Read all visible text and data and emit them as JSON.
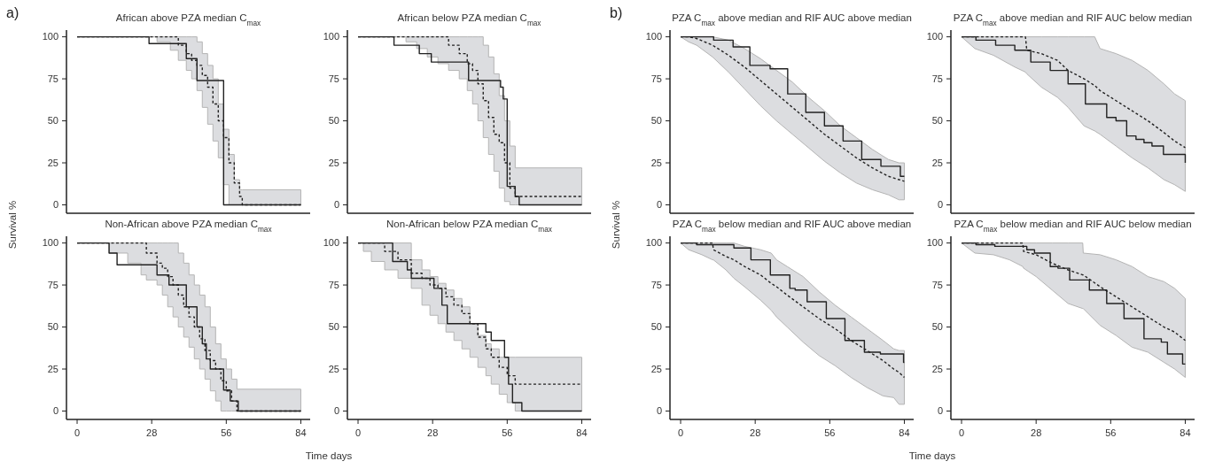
{
  "chart_data": [
    {
      "type": "step",
      "title": "African above PZA median C$_{max}$",
      "ylabel": "Survival %",
      "annotations": [
        "a)"
      ],
      "xlim": [
        -4,
        87.5
      ],
      "ylim": [
        -5,
        104
      ],
      "yticks": [
        0,
        25,
        50,
        75,
        100
      ],
      "tick_labels": "y",
      "series": [
        {
          "color": "#222222",
          "line_style": "solid",
          "x": [
            0,
            27,
            41,
            45,
            55,
            84
          ],
          "values": [
            100,
            96,
            87,
            74,
            0,
            0
          ]
        },
        {
          "color": "#222222",
          "line_style": "dashed",
          "x": [
            0,
            30,
            35,
            38,
            41,
            43,
            45,
            47,
            49,
            51,
            53,
            55,
            57,
            59,
            61,
            62,
            84
          ],
          "values": [
            100,
            100,
            100,
            95,
            90,
            86,
            83,
            77,
            70,
            60,
            50,
            40,
            25,
            13,
            5,
            0,
            0
          ],
          "lower": [
            100,
            97,
            92,
            86,
            80,
            75,
            68,
            58,
            48,
            38,
            28,
            12,
            0,
            0,
            0,
            0,
            0
          ],
          "upper": [
            100,
            100,
            100,
            100,
            100,
            100,
            97,
            90,
            83,
            75,
            60,
            45,
            30,
            15,
            9,
            9,
            9
          ]
        }
      ]
    },
    {
      "type": "step",
      "title": "African below PZA median C$_{max}$",
      "xlim": [
        -4,
        87.5
      ],
      "ylim": [
        -5,
        104
      ],
      "yticks": [
        0,
        25,
        50,
        75,
        100
      ],
      "tick_labels": "y",
      "series": [
        {
          "color": "#222222",
          "line_style": "solid",
          "x": [
            0,
            13.5,
            23,
            27.5,
            41.5,
            53.5,
            54.5,
            56,
            59,
            60.5,
            84
          ],
          "values": [
            100,
            95,
            90,
            85,
            74,
            70,
            63,
            11,
            5,
            0,
            0
          ]
        },
        {
          "color": "#222222",
          "line_style": "dashed",
          "x": [
            0,
            18,
            22,
            26,
            30,
            34,
            38,
            41,
            43,
            45,
            47,
            49,
            51,
            53,
            55,
            57,
            59,
            84
          ],
          "values": [
            100,
            100,
            100,
            100,
            100,
            95,
            90,
            84,
            80,
            72,
            62,
            52,
            42,
            37,
            25,
            10,
            5,
            5
          ],
          "lower": [
            100,
            97,
            93,
            88,
            84,
            80,
            75,
            68,
            60,
            50,
            40,
            30,
            20,
            10,
            2,
            0,
            0,
            0
          ],
          "upper": [
            100,
            100,
            100,
            100,
            100,
            100,
            100,
            100,
            100,
            100,
            95,
            88,
            78,
            65,
            50,
            35,
            22,
            21
          ]
        }
      ]
    },
    {
      "type": "step",
      "title": "Non-African above PZA median C$_{max}$",
      "xlabel": "Time days",
      "xlim": [
        -4,
        87.5
      ],
      "ylim": [
        -5,
        104
      ],
      "xticks": [
        0,
        28,
        56,
        84
      ],
      "yticks": [
        0,
        25,
        50,
        75,
        100
      ],
      "series": [
        {
          "color": "#222222",
          "line_style": "solid",
          "x": [
            0,
            12,
            15,
            30,
            34.5,
            41,
            45,
            47,
            48.5,
            50,
            55,
            57.5,
            60.5,
            84
          ],
          "values": [
            100,
            94,
            87,
            81,
            75,
            62,
            50,
            40,
            31,
            25,
            12.5,
            6,
            0,
            0
          ]
        },
        {
          "color": "#222222",
          "line_style": "dashed",
          "x": [
            0,
            12,
            19,
            24,
            26,
            30,
            32,
            34,
            36,
            38,
            40,
            42,
            44,
            46,
            48,
            50,
            52,
            54,
            56,
            58,
            60,
            84
          ],
          "values": [
            100,
            100,
            100,
            100,
            94,
            88,
            85,
            80,
            75,
            69,
            62,
            56,
            50,
            43,
            36,
            30,
            25,
            18,
            12,
            6,
            0,
            0
          ],
          "lower": [
            100,
            94,
            88,
            81,
            78,
            75,
            69,
            62,
            56,
            50,
            44,
            38,
            31,
            25,
            19,
            12,
            6,
            0,
            0,
            0,
            0,
            0
          ],
          "upper": [
            100,
            100,
            100,
            100,
            100,
            100,
            100,
            100,
            100,
            94,
            88,
            81,
            75,
            69,
            62,
            50,
            40,
            31,
            25,
            19,
            13,
            13
          ]
        }
      ]
    },
    {
      "type": "step",
      "title": "Non-African below PZA median C$_{max}$",
      "xlim": [
        -4,
        87.5
      ],
      "ylim": [
        -5,
        104
      ],
      "xticks": [
        0,
        28,
        56,
        84
      ],
      "yticks": [
        0,
        25,
        50,
        75,
        100
      ],
      "series": [
        {
          "color": "#222222",
          "line_style": "solid",
          "x": [
            0,
            13,
            18.5,
            20,
            28.5,
            31.5,
            33.5,
            48,
            50,
            55,
            56.5,
            58,
            61.5,
            84
          ],
          "values": [
            100,
            89,
            84,
            79,
            73,
            63,
            52,
            47,
            42,
            32,
            16,
            5,
            0,
            0
          ]
        },
        {
          "color": "#222222",
          "line_style": "dashed",
          "x": [
            0,
            2,
            5,
            10,
            15,
            20,
            24,
            27,
            30,
            33,
            36,
            39,
            42,
            45,
            48,
            50,
            53,
            56,
            59,
            84
          ],
          "values": [
            100,
            100,
            100,
            95,
            90,
            82,
            79,
            75,
            73,
            68,
            63,
            58,
            52,
            44,
            37,
            32,
            26,
            21,
            16,
            16
          ],
          "lower": [
            100,
            95,
            89,
            84,
            79,
            73,
            63,
            57,
            52,
            47,
            42,
            37,
            32,
            26,
            21,
            16,
            10,
            5,
            0,
            0
          ],
          "upper": [
            100,
            100,
            100,
            100,
            100,
            90,
            84,
            80,
            76,
            72,
            67,
            62,
            52,
            45,
            40,
            37,
            32,
            32,
            32,
            32
          ]
        }
      ]
    },
    {
      "type": "line",
      "title": "PZA C$_{max}$ above median and RIF AUC above median",
      "ylabel": "Survival %",
      "annotations": [
        "b)"
      ],
      "xlim": [
        -4,
        87.5
      ],
      "ylim": [
        -5,
        104
      ],
      "yticks": [
        0,
        25,
        50,
        75,
        100
      ],
      "tick_labels": "y",
      "series": [
        {
          "type": "step",
          "color": "#222222",
          "line_style": "solid",
          "x": [
            0,
            12.4,
            19.7,
            26,
            33.6,
            40.2,
            47,
            54,
            61,
            68,
            75.2,
            82.5,
            84
          ],
          "values": [
            100,
            98,
            94,
            83,
            81,
            66,
            55,
            47,
            38,
            27,
            23,
            17,
            17
          ]
        },
        {
          "color": "#222222",
          "line_style": "dashed",
          "x": [
            0,
            3,
            6,
            12,
            18,
            24,
            30,
            36,
            42,
            48,
            54,
            60,
            66,
            72,
            78,
            82,
            84
          ],
          "values": [
            100,
            100,
            99,
            95,
            89,
            82,
            74,
            66,
            58,
            50,
            42,
            35,
            28,
            22,
            17,
            15,
            14
          ],
          "lower": [
            100,
            97,
            95,
            88,
            79,
            69,
            59,
            50,
            42,
            34,
            26,
            19,
            13,
            9,
            6,
            3,
            3
          ],
          "upper": [
            100,
            100,
            100,
            100,
            98,
            93,
            87,
            80,
            73,
            64,
            56,
            47,
            40,
            33,
            27,
            25,
            25
          ]
        }
      ]
    },
    {
      "type": "line",
      "title": "PZA C$_{max}$ above median and RIF AUC below median",
      "xlim": [
        -4,
        87.5
      ],
      "ylim": [
        -5,
        104
      ],
      "yticks": [
        0,
        25,
        50,
        75,
        100
      ],
      "tick_labels": "y",
      "series": [
        {
          "type": "step",
          "color": "#222222",
          "line_style": "solid",
          "x": [
            0,
            5.4,
            12.8,
            20,
            26,
            33.3,
            40,
            46.5,
            54.5,
            58,
            62,
            65.5,
            68.5,
            71.5,
            75.8,
            84
          ],
          "values": [
            100,
            98,
            95,
            92,
            85,
            80,
            72,
            60,
            52,
            50,
            41,
            39,
            37,
            35,
            30,
            25
          ]
        },
        {
          "color": "#222222",
          "line_style": "dashed",
          "x": [
            0,
            5,
            12,
            20,
            24,
            24.5,
            30,
            36,
            40,
            46,
            50,
            52,
            58,
            64,
            70,
            76,
            80,
            84
          ],
          "values": [
            100,
            100,
            100,
            100,
            100,
            92,
            90,
            86,
            80,
            75,
            71,
            68,
            62,
            56,
            50,
            43,
            38,
            34
          ],
          "lower": [
            100,
            93,
            89,
            82,
            79,
            78,
            70,
            64,
            58,
            47,
            44,
            42,
            35,
            28,
            22,
            15,
            12,
            8
          ],
          "upper": [
            100,
            100,
            100,
            100,
            100,
            100,
            100,
            100,
            100,
            100,
            100,
            93,
            90,
            86,
            80,
            72,
            66,
            62
          ]
        }
      ]
    },
    {
      "type": "line",
      "title": "PZA C$_{max}$ below median and RIF AUC above median",
      "xlabel": "Time days",
      "xlim": [
        -4,
        87.5
      ],
      "ylim": [
        -5,
        104
      ],
      "xticks": [
        0,
        28,
        56,
        84
      ],
      "yticks": [
        0,
        25,
        50,
        75,
        100
      ],
      "series": [
        {
          "type": "step",
          "color": "#222222",
          "line_style": "solid",
          "x": [
            0,
            6,
            20,
            26.4,
            33.7,
            41,
            43,
            47.5,
            54.7,
            61.7,
            69,
            75,
            83.7,
            84
          ],
          "values": [
            100,
            99,
            97,
            90,
            81,
            73,
            72,
            65,
            55,
            42,
            35,
            34,
            29,
            29
          ]
        },
        {
          "color": "#222222",
          "line_style": "dashed",
          "x": [
            0,
            3,
            8,
            12,
            12.3,
            17,
            20,
            24,
            30,
            34,
            36,
            40,
            46,
            52,
            58,
            64,
            70,
            76,
            80,
            82,
            84
          ],
          "values": [
            100,
            100,
            100,
            100,
            96,
            92,
            90,
            86,
            81,
            76,
            74,
            69,
            62,
            55,
            49,
            42,
            36,
            30,
            25,
            23,
            20
          ],
          "lower": [
            100,
            96,
            93,
            90,
            90,
            84,
            79,
            74,
            66,
            60,
            56,
            50,
            41,
            33,
            27,
            20,
            14,
            9,
            8,
            4,
            4
          ],
          "upper": [
            100,
            100,
            100,
            100,
            100,
            100,
            100,
            98,
            96,
            94,
            90,
            86,
            80,
            71,
            63,
            56,
            49,
            42,
            37,
            36,
            36
          ]
        }
      ]
    },
    {
      "type": "line",
      "title": "PZA C$_{max}$ below median and RIF AUC below median",
      "xlim": [
        -4,
        87.5
      ],
      "ylim": [
        -5,
        104
      ],
      "xticks": [
        0,
        28,
        56,
        84
      ],
      "yticks": [
        0,
        25,
        50,
        75,
        100
      ],
      "series": [
        {
          "type": "step",
          "color": "#222222",
          "line_style": "solid",
          "x": [
            0,
            5.4,
            12.5,
            24.5,
            27.4,
            33.3,
            36.2,
            40.6,
            48,
            54.5,
            61,
            68.5,
            75,
            77.3,
            83,
            84
          ],
          "values": [
            100,
            99,
            98,
            96,
            94,
            86,
            85,
            78,
            72,
            64,
            55,
            43,
            41,
            34,
            28,
            28
          ]
        },
        {
          "color": "#222222",
          "line_style": "dashed",
          "x": [
            0,
            5,
            12,
            18,
            23,
            23.3,
            28,
            34,
            40,
            45.5,
            45.7,
            52,
            58,
            64,
            70,
            76,
            80,
            84
          ],
          "values": [
            100,
            100,
            100,
            100,
            100,
            95,
            93,
            88,
            84,
            81,
            81,
            74,
            68,
            62,
            56,
            50,
            47,
            42
          ],
          "lower": [
            100,
            94,
            93,
            90,
            86,
            85,
            80,
            72,
            64,
            61,
            61,
            51,
            45,
            38,
            35,
            29,
            25,
            20
          ],
          "upper": [
            100,
            100,
            100,
            100,
            100,
            100,
            100,
            100,
            100,
            100,
            94,
            93,
            90,
            86,
            80,
            77,
            73,
            67
          ]
        }
      ]
    }
  ]
}
